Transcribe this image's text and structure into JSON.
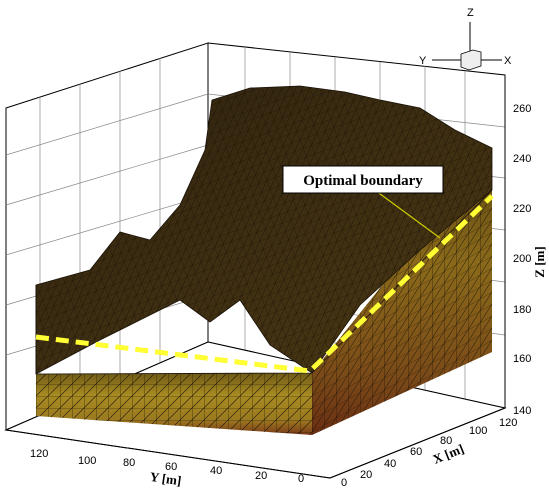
{
  "triad": {
    "z": "Z",
    "y": "Y",
    "x": "X"
  },
  "callout": "Optimal boundary",
  "z_axis": {
    "label": "Z [m]",
    "ticks": [
      "140",
      "160",
      "180",
      "200",
      "220",
      "240",
      "260"
    ]
  },
  "y_axis": {
    "label": "Y [m]",
    "ticks": [
      "120",
      "100",
      "80",
      "60",
      "40",
      "20",
      "0"
    ]
  },
  "x_axis": {
    "label": "X [m]",
    "ticks": [
      "0",
      "20",
      "40",
      "60",
      "80",
      "100",
      "120"
    ]
  },
  "colors": {
    "surface": "#3a2a12",
    "wall_top": "#8a6d1a",
    "wall_mid": "#a88a1e",
    "wall_bottom": "#7a3a18",
    "mesh": "#1a1208",
    "boundary": "#ffff33",
    "grid": "#888888"
  }
}
